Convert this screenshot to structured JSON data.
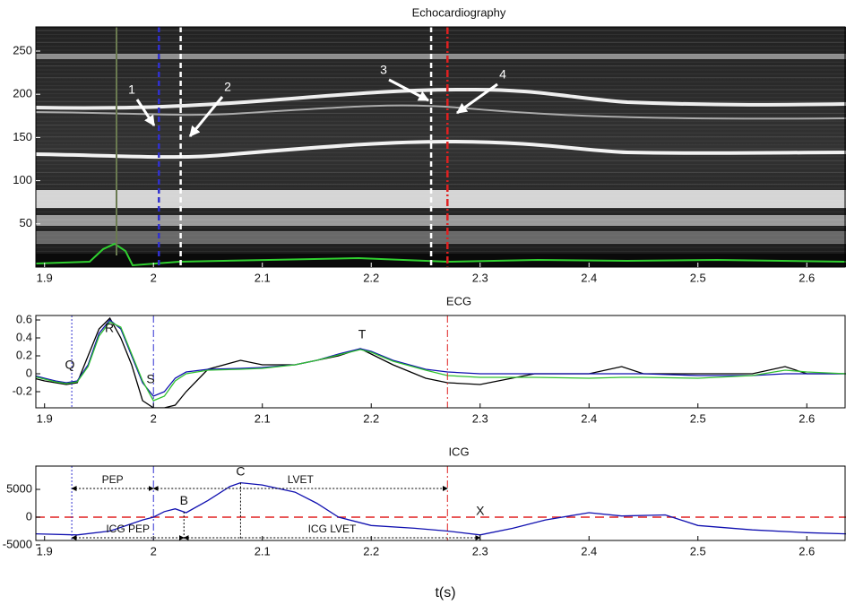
{
  "chart_data": [
    {
      "type": "image",
      "title": "Echocardiography",
      "xlim": [
        1.892,
        2.636
      ],
      "xticks": [
        1.9,
        2,
        2.1,
        2.2,
        2.3,
        2.4,
        2.5,
        2.6
      ],
      "ylim": [
        0,
        278
      ],
      "yticks": [
        50,
        100,
        150,
        200,
        250
      ],
      "vlines": [
        {
          "x": 2.005,
          "color": "#3030d0",
          "style": "dashed"
        },
        {
          "x": 2.025,
          "color": "#ffffff",
          "style": "dashed"
        },
        {
          "x": 2.255,
          "color": "#ffffff",
          "style": "dashed"
        },
        {
          "x": 2.27,
          "color": "#e02020",
          "style": "dashdot"
        }
      ],
      "annotations": [
        "1",
        "2",
        "3",
        "4"
      ]
    },
    {
      "type": "line",
      "title": "ECG",
      "xlim": [
        1.892,
        2.636
      ],
      "xticks": [
        1.9,
        2,
        2.1,
        2.2,
        2.3,
        2.4,
        2.5,
        2.6
      ],
      "ylim": [
        -0.38,
        0.65
      ],
      "yticks": [
        -0.2,
        0,
        0.2,
        0.4,
        0.6
      ],
      "x": [
        1.89,
        1.9,
        1.91,
        1.92,
        1.93,
        1.94,
        1.95,
        1.96,
        1.97,
        1.98,
        1.99,
        2.0,
        2.01,
        2.02,
        2.03,
        2.05,
        2.08,
        2.1,
        2.13,
        2.15,
        2.17,
        2.19,
        2.2,
        2.22,
        2.25,
        2.27,
        2.3,
        2.35,
        2.4,
        2.43,
        2.45,
        2.5,
        2.55,
        2.58,
        2.6,
        2.636
      ],
      "series": [
        {
          "color": "#000000",
          "values": [
            -0.05,
            -0.08,
            -0.1,
            -0.12,
            -0.1,
            0.2,
            0.5,
            0.62,
            0.4,
            0.1,
            -0.3,
            -0.38,
            -0.38,
            -0.35,
            -0.2,
            0.05,
            0.15,
            0.1,
            0.1,
            0.15,
            0.2,
            0.28,
            0.22,
            0.1,
            -0.05,
            -0.1,
            -0.12,
            0.0,
            0.0,
            0.08,
            0.0,
            0.0,
            0.0,
            0.08,
            0.0,
            0.0
          ]
        },
        {
          "color": "#1010b0",
          "values": [
            -0.02,
            -0.05,
            -0.08,
            -0.1,
            -0.08,
            0.1,
            0.45,
            0.6,
            0.5,
            0.2,
            -0.1,
            -0.25,
            -0.2,
            -0.05,
            0.02,
            0.05,
            0.06,
            0.07,
            0.1,
            0.15,
            0.22,
            0.28,
            0.25,
            0.15,
            0.05,
            0.02,
            0.0,
            0.0,
            0.0,
            0.0,
            0.0,
            -0.02,
            -0.02,
            0.0,
            0.0,
            0.0
          ]
        },
        {
          "color": "#30c030",
          "values": [
            -0.03,
            -0.06,
            -0.09,
            -0.11,
            -0.09,
            0.08,
            0.42,
            0.58,
            0.52,
            0.22,
            -0.08,
            -0.3,
            -0.25,
            -0.08,
            0.0,
            0.04,
            0.05,
            0.06,
            0.1,
            0.15,
            0.21,
            0.27,
            0.24,
            0.14,
            0.04,
            -0.02,
            -0.04,
            -0.04,
            -0.05,
            -0.04,
            -0.04,
            -0.05,
            -0.02,
            0.04,
            0.02,
            0.0
          ]
        }
      ],
      "vlines": [
        {
          "x": 1.925,
          "color": "#3030d0",
          "style": "dotted"
        },
        {
          "x": 2.0,
          "color": "#3030d0",
          "style": "dashdot"
        },
        {
          "x": 2.27,
          "color": "#e02020",
          "style": "dashdot"
        }
      ],
      "annotations": [
        "Q",
        "R",
        "S",
        "T"
      ]
    },
    {
      "type": "line",
      "title": "ICG",
      "xlabel": "t(s)",
      "xlim": [
        1.892,
        2.636
      ],
      "xticks": [
        1.9,
        2,
        2.1,
        2.2,
        2.3,
        2.4,
        2.5,
        2.6
      ],
      "ylim": [
        -4200,
        9200
      ],
      "yticks": [
        -5000,
        0,
        5000
      ],
      "x": [
        1.89,
        1.93,
        1.96,
        1.99,
        2.0,
        2.01,
        2.02,
        2.03,
        2.05,
        2.07,
        2.08,
        2.1,
        2.13,
        2.15,
        2.17,
        2.2,
        2.24,
        2.27,
        2.3,
        2.33,
        2.36,
        2.4,
        2.43,
        2.47,
        2.5,
        2.55,
        2.6,
        2.636
      ],
      "series": [
        {
          "color": "#1010b0",
          "values": [
            -3000,
            -3200,
            -2500,
            -500,
            0,
            1000,
            1500,
            800,
            3000,
            5500,
            6200,
            5800,
            4500,
            2500,
            0,
            -1500,
            -2000,
            -2500,
            -3200,
            -2000,
            -500,
            800,
            200,
            400,
            -1500,
            -2300,
            -2800,
            -3000
          ]
        }
      ],
      "hline": {
        "y": 0,
        "color": "#e02020",
        "style": "dashed"
      },
      "vlines": [
        {
          "x": 1.925,
          "color": "#3030d0",
          "style": "dotted"
        },
        {
          "x": 2.0,
          "color": "#3030d0",
          "style": "dashdot"
        },
        {
          "x": 2.27,
          "color": "#e02020",
          "style": "dashdot"
        }
      ],
      "markers": [
        {
          "label": "B",
          "x": 2.028
        },
        {
          "label": "C",
          "x": 2.08
        },
        {
          "label": "X",
          "x": 2.3
        }
      ],
      "intervals": [
        {
          "label": "PEP",
          "from": 1.925,
          "to": 2.0,
          "level": "upper"
        },
        {
          "label": "LVET",
          "from": 2.0,
          "to": 2.27,
          "level": "upper"
        },
        {
          "label": "ICG PEP",
          "from": 1.925,
          "to": 2.028,
          "level": "lower"
        },
        {
          "label": "ICG LVET",
          "from": 2.028,
          "to": 2.3,
          "level": "lower"
        }
      ]
    }
  ]
}
